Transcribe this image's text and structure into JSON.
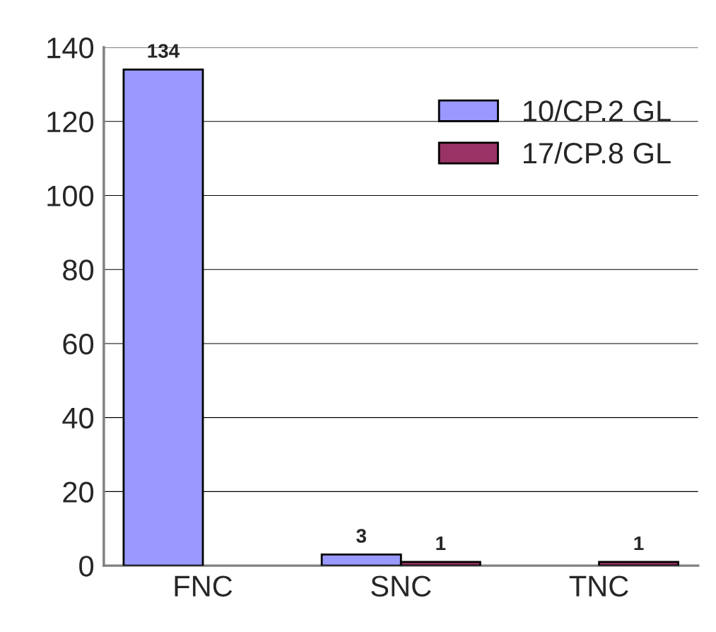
{
  "chart_data": {
    "type": "bar",
    "categories": [
      "FNC",
      "SNC",
      "TNC"
    ],
    "series": [
      {
        "name": "10/CP.2 GL",
        "color": "#9999ff",
        "values": [
          134,
          3,
          null
        ]
      },
      {
        "name": "17/CP.8 GL",
        "color": "#993366",
        "values": [
          null,
          1,
          1
        ]
      }
    ],
    "ylim": [
      0,
      140
    ],
    "yticks": [
      0,
      20,
      40,
      60,
      80,
      100,
      120,
      140
    ],
    "grid": "y",
    "legend": "top right",
    "data_labels": true
  }
}
